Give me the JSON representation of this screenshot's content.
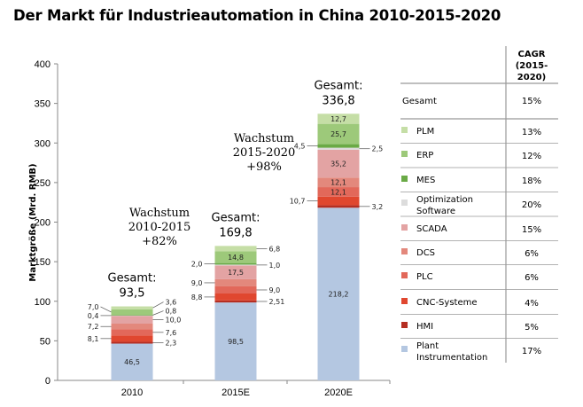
{
  "title": "Der Markt für Industrieautomation in China 2010-2015-2020",
  "chart_data": {
    "type": "bar",
    "stacked": true,
    "title": "Der Markt für Industrieautomation in China 2010-2015-2020",
    "xlabel": "",
    "ylabel": "Marktgröße (Mrd. RMB)",
    "ylim": [
      0,
      400
    ],
    "yticks": [
      0,
      50,
      100,
      150,
      200,
      250,
      300,
      350,
      400
    ],
    "grid": false,
    "categories": [
      "2010",
      "2015E",
      "2020E"
    ],
    "series": [
      {
        "name": "Plant Instrumentation",
        "color": "#b4c7e1",
        "values": [
          46.5,
          98.5,
          218.2
        ]
      },
      {
        "name": "HMI",
        "color": "#b52e22",
        "values": [
          2.3,
          2.51,
          3.2
        ]
      },
      {
        "name": "CNC-Systeme",
        "color": "#e0472f",
        "values": [
          8.1,
          8.8,
          10.7
        ]
      },
      {
        "name": "PLC",
        "color": "#e2685a",
        "values": [
          7.6,
          9.0,
          12.1
        ]
      },
      {
        "name": "DCS",
        "color": "#e3887c",
        "values": [
          7.2,
          9.0,
          12.1
        ]
      },
      {
        "name": "SCADA",
        "color": "#e3a3a3",
        "values": [
          10.0,
          17.5,
          35.2
        ]
      },
      {
        "name": "Optimization Software",
        "color": "#dcdcdc",
        "values": [
          0.4,
          1.0,
          2.5
        ]
      },
      {
        "name": "MES",
        "color": "#6aaa46",
        "values": [
          0.8,
          2.0,
          4.5
        ]
      },
      {
        "name": "ERP",
        "color": "#9dc97a",
        "values": [
          7.0,
          14.8,
          25.7
        ]
      },
      {
        "name": "PLM",
        "color": "#c5dea6",
        "values": [
          3.6,
          6.8,
          12.7
        ]
      }
    ],
    "totals": [
      {
        "label": "Gesamt:",
        "value": "93,5"
      },
      {
        "label": "Gesamt:",
        "value": "169,8"
      },
      {
        "label": "Gesamt:",
        "value": "336,8"
      }
    ],
    "annotations": [
      {
        "line1": "Wachstum",
        "line2": "2010-2015",
        "line3": "+82%"
      },
      {
        "line1": "Wachstum",
        "line2": "2015-2020",
        "line3": "+98%"
      }
    ],
    "legend_placement": "right",
    "table": {
      "header": [
        "CAGR",
        "(2015-",
        "2020)"
      ],
      "total_row": {
        "label": "Gesamt",
        "cagr": "15%"
      },
      "rows": [
        {
          "label": [
            "PLM"
          ],
          "color": "#c5dea6",
          "cagr": "13%"
        },
        {
          "label": [
            "ERP"
          ],
          "color": "#9dc97a",
          "cagr": "12%"
        },
        {
          "label": [
            "MES"
          ],
          "color": "#6aaa46",
          "cagr": "18%"
        },
        {
          "label": [
            "Optimization",
            "Software"
          ],
          "color": "#dcdcdc",
          "cagr": "20%"
        },
        {
          "label": [
            "SCADA"
          ],
          "color": "#e3a3a3",
          "cagr": "15%"
        },
        {
          "label": [
            "DCS"
          ],
          "color": "#e3887c",
          "cagr": "6%"
        },
        {
          "label": [
            "PLC"
          ],
          "color": "#e2685a",
          "cagr": "6%"
        },
        {
          "label": [
            "CNC-Systeme"
          ],
          "color": "#e0472f",
          "cagr": "4%"
        },
        {
          "label": [
            "HMI"
          ],
          "color": "#b52e22",
          "cagr": "5%"
        },
        {
          "label": [
            "Plant",
            "Instrumentation"
          ],
          "color": "#b4c7e1",
          "cagr": "17%"
        }
      ]
    }
  }
}
